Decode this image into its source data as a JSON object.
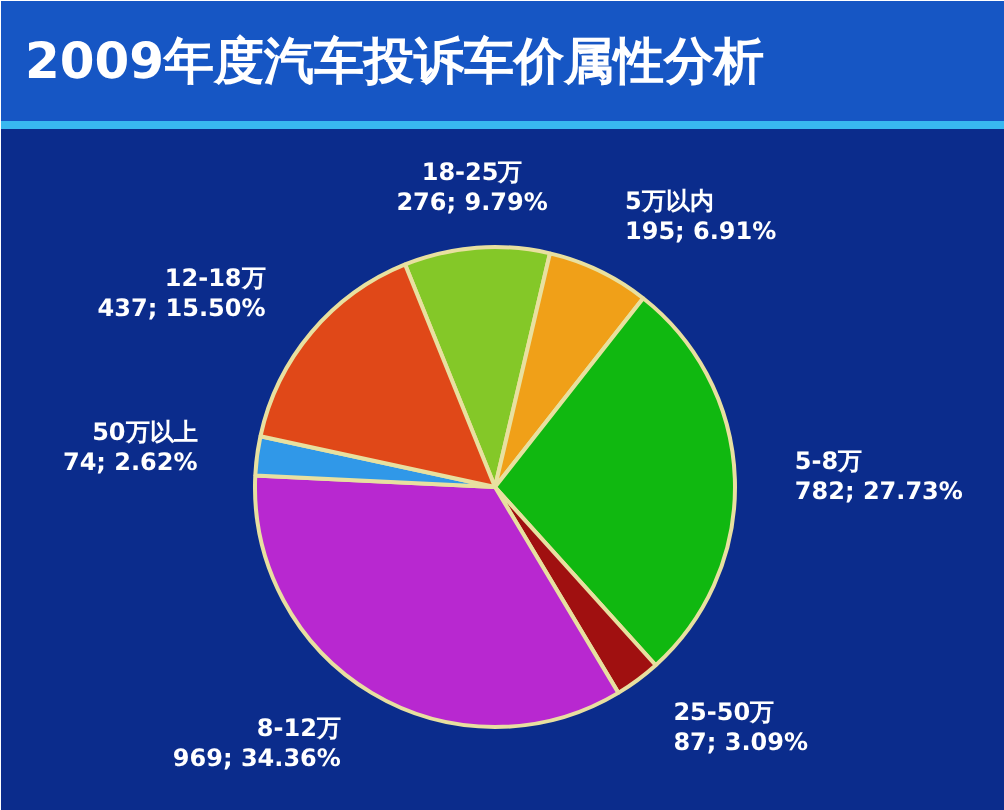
{
  "chart_data": {
    "type": "pie",
    "title": "2009年度汽车投诉车价属性分析",
    "categories": [
      "18-25万",
      "5万以内",
      "5-8万",
      "25-50万",
      "8-12万",
      "50万以上",
      "12-18万"
    ],
    "values": [
      276,
      195,
      782,
      87,
      969,
      74,
      437
    ],
    "value_labels": [
      "276; 9.79%",
      "195; 6.91%",
      "782; 27.73%",
      "87; 3.09%",
      "969; 34.36%",
      "74; 2.62%",
      "437; 15.50%"
    ],
    "colors": [
      "#84c828",
      "#f0a018",
      "#10b810",
      "#a01010",
      "#b828d0",
      "#3098e8",
      "#e04818"
    ]
  }
}
